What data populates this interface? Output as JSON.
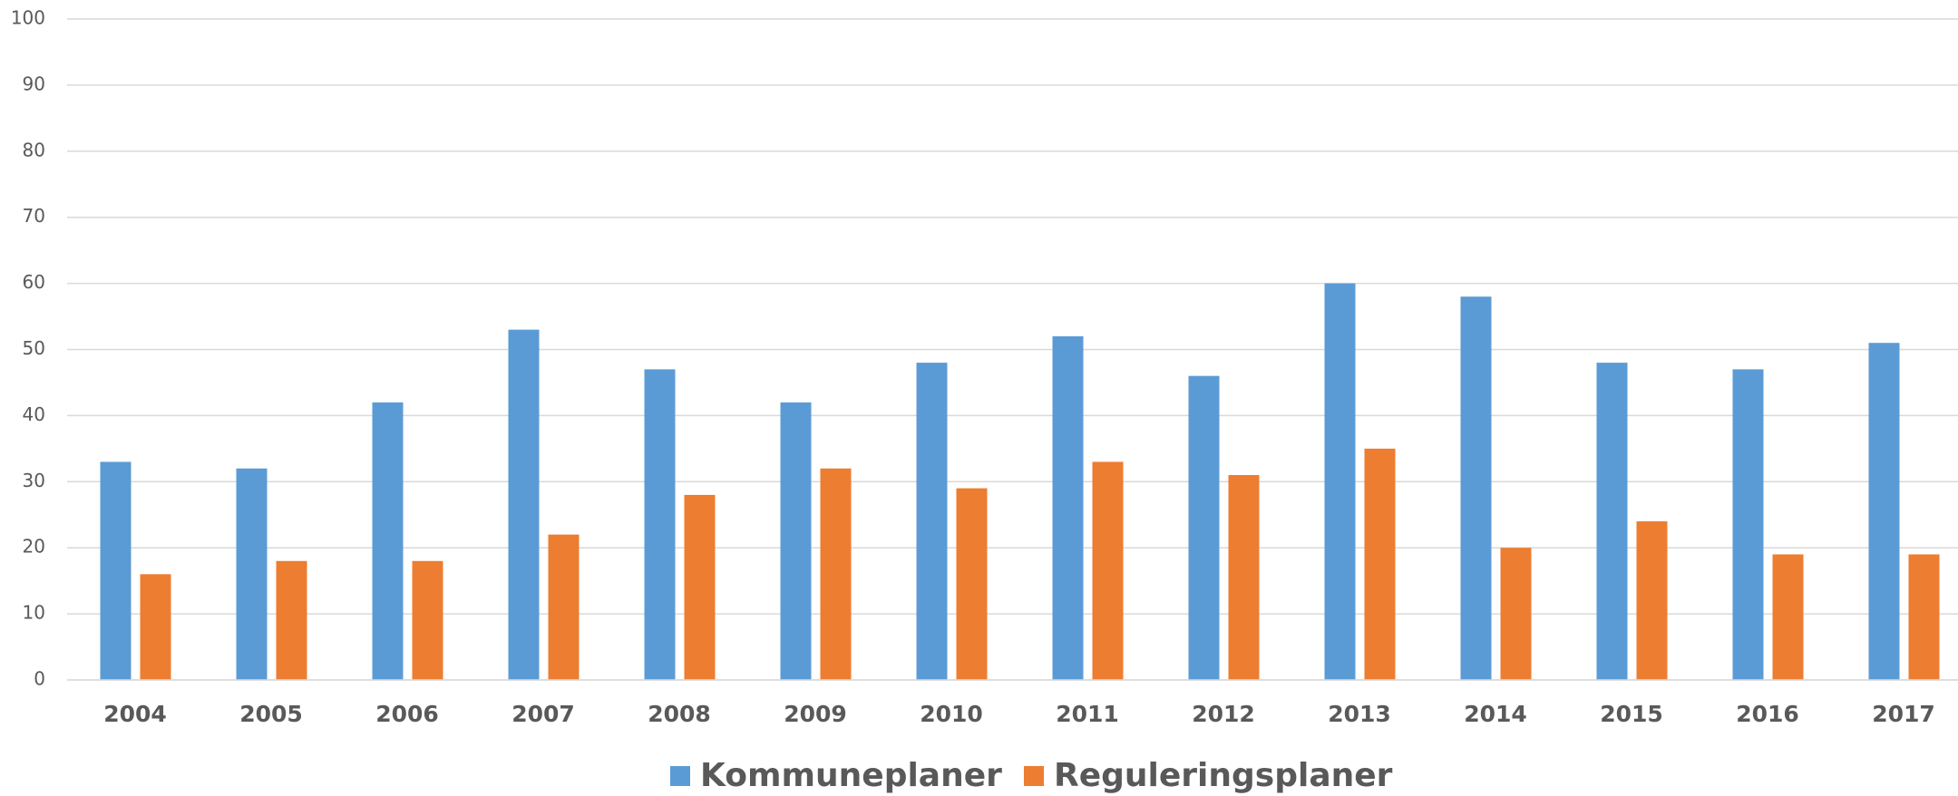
{
  "chart_data": {
    "type": "bar",
    "categories": [
      "2004",
      "2005",
      "2006",
      "2007",
      "2008",
      "2009",
      "2010",
      "2011",
      "2012",
      "2013",
      "2014",
      "2015",
      "2016",
      "2017"
    ],
    "series": [
      {
        "name": "Kommuneplaner",
        "color": "#5b9bd5",
        "values": [
          33,
          32,
          42,
          53,
          47,
          42,
          48,
          52,
          46,
          60,
          58,
          48,
          47,
          51
        ]
      },
      {
        "name": "Reguleringsplaner",
        "color": "#ed7d31",
        "values": [
          16,
          18,
          18,
          22,
          28,
          32,
          29,
          33,
          31,
          35,
          20,
          24,
          19,
          19
        ]
      }
    ],
    "ylim": [
      0,
      100
    ],
    "yticks": [
      0,
      10,
      20,
      30,
      40,
      50,
      60,
      70,
      80,
      90,
      100
    ],
    "grid": true,
    "legend": "bottom"
  }
}
